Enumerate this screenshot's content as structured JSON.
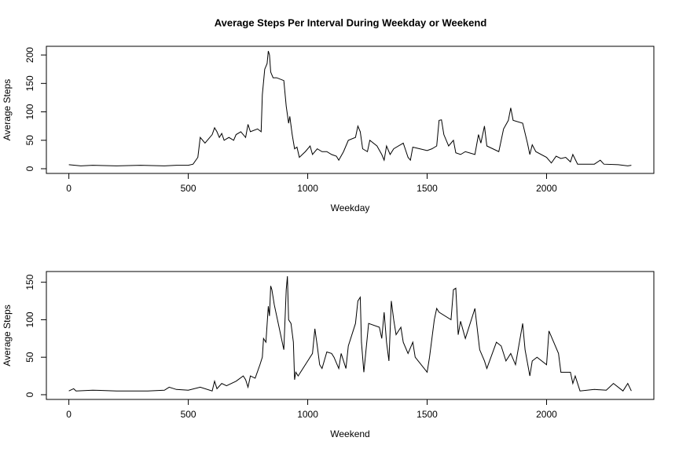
{
  "chart_data": [
    {
      "type": "line",
      "title": "Average Steps Per Interval During Weekday or Weekend",
      "xlabel": "Weekday",
      "ylabel": "Average Steps",
      "color": "#000000",
      "x": [
        0,
        50,
        100,
        200,
        300,
        400,
        450,
        500,
        520,
        540,
        550,
        570,
        600,
        610,
        620,
        630,
        640,
        650,
        670,
        690,
        700,
        720,
        740,
        750,
        760,
        790,
        805,
        810,
        820,
        830,
        835,
        840,
        845,
        855,
        870,
        900,
        910,
        920,
        925,
        935,
        945,
        955,
        965,
        990,
        1010,
        1020,
        1040,
        1060,
        1080,
        1100,
        1120,
        1130,
        1150,
        1170,
        1200,
        1210,
        1220,
        1230,
        1250,
        1260,
        1290,
        1310,
        1320,
        1330,
        1345,
        1360,
        1400,
        1420,
        1430,
        1440,
        1500,
        1520,
        1540,
        1550,
        1560,
        1570,
        1590,
        1610,
        1620,
        1640,
        1660,
        1700,
        1715,
        1725,
        1740,
        1750,
        1800,
        1820,
        1840,
        1850,
        1860,
        1900,
        1920,
        1930,
        1940,
        1955,
        2000,
        2020,
        2040,
        2060,
        2080,
        2100,
        2110,
        2130,
        2200,
        2225,
        2240,
        2300,
        2340,
        2355
      ],
      "values": [
        7,
        5,
        6,
        5,
        6,
        5,
        6,
        6,
        8,
        20,
        55,
        45,
        60,
        72,
        65,
        55,
        62,
        50,
        55,
        50,
        60,
        65,
        55,
        78,
        65,
        70,
        65,
        130,
        175,
        185,
        207,
        200,
        170,
        160,
        160,
        155,
        110,
        80,
        92,
        60,
        35,
        38,
        20,
        30,
        40,
        25,
        35,
        30,
        30,
        25,
        22,
        15,
        30,
        50,
        55,
        75,
        65,
        35,
        30,
        50,
        40,
        25,
        15,
        40,
        25,
        35,
        45,
        20,
        15,
        38,
        32,
        35,
        40,
        85,
        86,
        60,
        40,
        50,
        28,
        25,
        30,
        25,
        60,
        45,
        75,
        40,
        30,
        70,
        85,
        107,
        85,
        80,
        45,
        25,
        42,
        30,
        20,
        10,
        22,
        18,
        20,
        12,
        25,
        8,
        8,
        15,
        8,
        7,
        5,
        6
      ],
      "xlim": [
        -94.2,
        2449.2
      ],
      "ylim": [
        -8.3,
        215.3
      ],
      "xticks": [
        0,
        500,
        1000,
        1500,
        2000
      ],
      "yticks": [
        0,
        50,
        100,
        150,
        200
      ]
    },
    {
      "type": "line",
      "xlabel": "Weekend",
      "ylabel": "Average Steps",
      "color": "#000000",
      "x": [
        0,
        20,
        30,
        100,
        200,
        300,
        330,
        400,
        420,
        450,
        500,
        550,
        600,
        610,
        620,
        640,
        660,
        700,
        730,
        740,
        750,
        760,
        780,
        800,
        810,
        815,
        825,
        835,
        840,
        845,
        850,
        860,
        900,
        910,
        915,
        920,
        930,
        940,
        945,
        950,
        960,
        1000,
        1020,
        1030,
        1040,
        1050,
        1060,
        1080,
        1100,
        1110,
        1130,
        1140,
        1160,
        1170,
        1200,
        1210,
        1220,
        1225,
        1235,
        1255,
        1300,
        1310,
        1320,
        1330,
        1340,
        1350,
        1360,
        1370,
        1390,
        1400,
        1420,
        1440,
        1450,
        1500,
        1510,
        1530,
        1540,
        1550,
        1600,
        1610,
        1620,
        1630,
        1640,
        1660,
        1700,
        1720,
        1740,
        1750,
        1790,
        1810,
        1830,
        1850,
        1870,
        1900,
        1910,
        1930,
        1940,
        1960,
        2000,
        2010,
        2030,
        2050,
        2060,
        2100,
        2110,
        2120,
        2140,
        2200,
        2250,
        2280,
        2320,
        2340,
        2355
      ],
      "values": [
        5,
        8,
        5,
        6,
        5,
        5,
        5,
        6,
        10,
        7,
        6,
        10,
        5,
        18,
        8,
        15,
        12,
        18,
        25,
        20,
        10,
        25,
        22,
        40,
        50,
        75,
        70,
        118,
        105,
        145,
        140,
        120,
        60,
        140,
        158,
        100,
        95,
        70,
        20,
        30,
        25,
        45,
        55,
        88,
        65,
        40,
        35,
        57,
        55,
        50,
        35,
        55,
        35,
        65,
        95,
        125,
        130,
        70,
        30,
        95,
        90,
        75,
        110,
        70,
        45,
        125,
        100,
        80,
        90,
        70,
        55,
        70,
        50,
        30,
        50,
        100,
        115,
        110,
        100,
        140,
        142,
        80,
        98,
        75,
        115,
        60,
        45,
        35,
        70,
        65,
        45,
        55,
        40,
        95,
        60,
        25,
        45,
        50,
        40,
        85,
        70,
        55,
        30,
        30,
        15,
        25,
        5,
        7,
        6,
        15,
        5,
        15,
        5
      ],
      "xlim": [
        -94.2,
        2449.2
      ],
      "ylim": [
        -6.3,
        164.3
      ],
      "xticks": [
        0,
        500,
        1000,
        1500,
        2000
      ],
      "yticks": [
        0,
        50,
        100,
        150
      ]
    }
  ]
}
